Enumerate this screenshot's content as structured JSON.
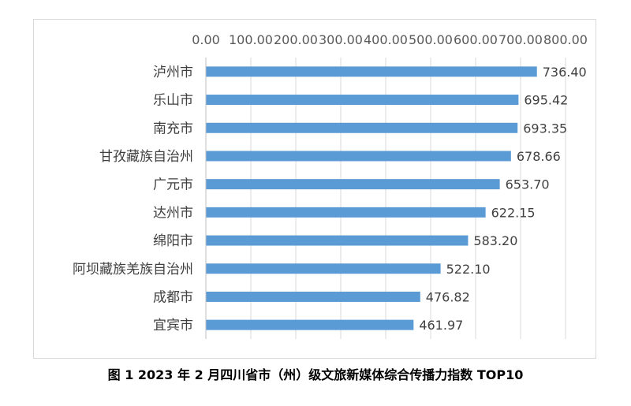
{
  "caption": "图 1 2023 年 2 月四川省市（州）级文旅新媒体综合传播力指数 TOP10",
  "chart_data": {
    "type": "bar",
    "orientation": "horizontal",
    "categories": [
      "泸州市",
      "乐山市",
      "南充市",
      "甘孜藏族自治州",
      "广元市",
      "达州市",
      "绵阳市",
      "阿坝藏族羌族自治州",
      "成都市",
      "宜宾市"
    ],
    "values": [
      736.4,
      695.42,
      693.35,
      678.66,
      653.7,
      622.15,
      583.2,
      522.1,
      476.82,
      461.97
    ],
    "value_labels": [
      "736.40",
      "695.42",
      "693.35",
      "678.66",
      "653.70",
      "622.15",
      "583.20",
      "522.10",
      "476.82",
      "461.97"
    ],
    "xlim": [
      0,
      800
    ],
    "x_ticks": [
      0,
      100,
      200,
      300,
      400,
      500,
      600,
      700,
      800
    ],
    "x_tick_labels": [
      "0.00",
      "100.00",
      "200.00",
      "300.00",
      "400.00",
      "500.00",
      "600.00",
      "700.00",
      "800.00"
    ],
    "x_axis_position": "top",
    "grid": true,
    "legend": "none",
    "bar_color": "#5b9bd5"
  }
}
